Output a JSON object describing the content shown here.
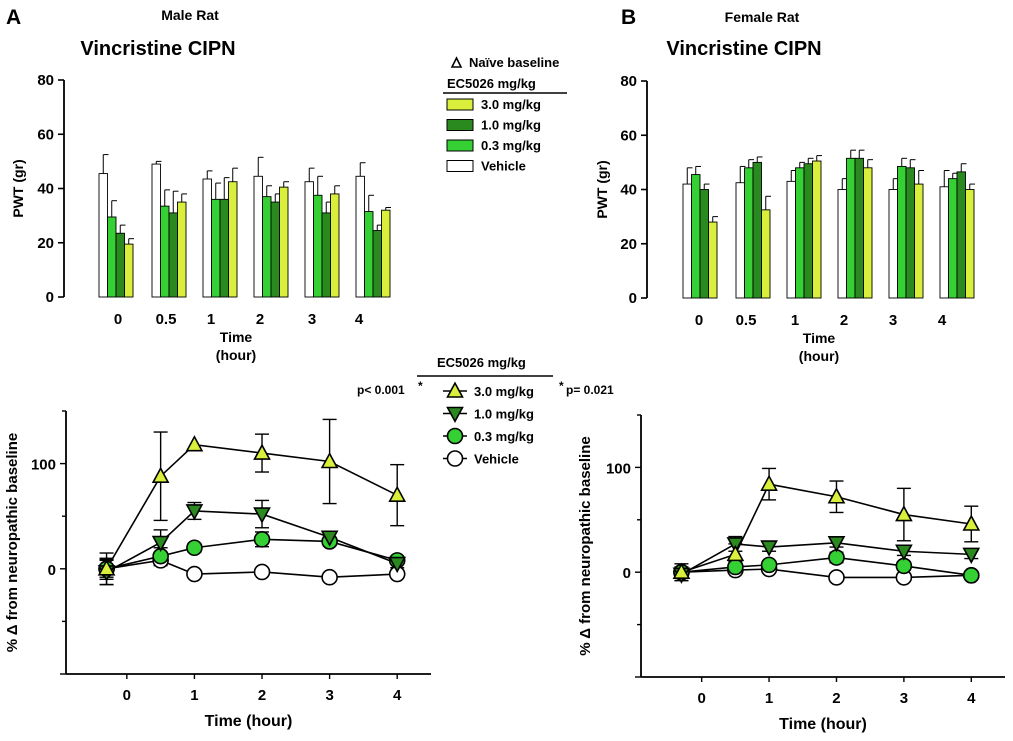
{
  "figure": {
    "panel_a": "A",
    "panel_b": "B",
    "male_title": "Male Rat",
    "female_title": "Female Rat",
    "male_subtitle": "Vincristine CIPN",
    "female_subtitle": "Vincristine CIPN"
  },
  "legend_top": {
    "triangle_label": "Naïve baseline",
    "header": "EC5026 mg/kg",
    "items": [
      {
        "label": "3.0 mg/kg",
        "color": "#d9ef3b"
      },
      {
        "label": "1.0 mg/kg",
        "color": "#2b8a1f"
      },
      {
        "label": "0.3 mg/kg",
        "color": "#34d034"
      },
      {
        "label": "Vehicle",
        "color": "#ffffff"
      }
    ]
  },
  "legend_bottom": {
    "header": "EC5026 mg/kg",
    "items": [
      {
        "label": "3.0 mg/kg",
        "marker": "triangle-up",
        "color": "#d9ef3b"
      },
      {
        "label": "1.0 mg/kg",
        "marker": "triangle-down",
        "color": "#2b8a1f"
      },
      {
        "label": "0.3 mg/kg",
        "marker": "circle",
        "color": "#34d034"
      },
      {
        "label": "Vehicle",
        "marker": "circle",
        "color": "#ffffff"
      }
    ],
    "pval_left": "p< 0.001",
    "pval_left_star": "*",
    "pval_right_star": "*",
    "pval_right": "p= 0.021"
  },
  "chart_data": [
    {
      "id": "male_bar",
      "type": "bar",
      "title": "Male Rat",
      "subtitle": "Vincristine CIPN",
      "ylabel": "PWT (gr)",
      "xlabel": "Time",
      "xlabel2": "(hour)",
      "ylim": [
        0,
        80
      ],
      "yticks": [
        0,
        20,
        40,
        60,
        80
      ],
      "categories": [
        "0",
        "0.5",
        "1",
        "2",
        "3",
        "4"
      ],
      "series": [
        {
          "name": "Vehicle",
          "color": "#ffffff",
          "values": [
            45.5,
            49,
            43.5,
            44.5,
            42.5,
            44.5
          ],
          "errors": [
            7,
            1,
            3,
            7,
            5,
            5
          ]
        },
        {
          "name": "0.3 mg/kg",
          "color": "#34d034",
          "values": [
            29.5,
            33.5,
            36,
            37,
            37.5,
            31.5
          ],
          "errors": [
            6,
            6,
            6,
            4,
            7,
            6
          ]
        },
        {
          "name": "1.0 mg/kg",
          "color": "#2b8a1f",
          "values": [
            23.5,
            31,
            36,
            35,
            31,
            24.5
          ],
          "errors": [
            3,
            8,
            8,
            3,
            4,
            2
          ]
        },
        {
          "name": "3.0 mg/kg",
          "color": "#d9ef3b",
          "values": [
            19.5,
            35,
            42.5,
            40.5,
            38,
            32
          ],
          "errors": [
            2,
            3,
            5,
            2,
            3,
            1
          ]
        }
      ]
    },
    {
      "id": "female_bar",
      "type": "bar",
      "title": "Female Rat",
      "subtitle": "Vincristine CIPN",
      "ylabel": "PWT (gr)",
      "xlabel": "Time",
      "xlabel2": "(hour)",
      "ylim": [
        0,
        80
      ],
      "yticks": [
        0,
        20,
        40,
        60,
        80
      ],
      "categories": [
        "0",
        "0.5",
        "1",
        "2",
        "3",
        "4"
      ],
      "series": [
        {
          "name": "Vehicle",
          "color": "#ffffff",
          "values": [
            42,
            42.5,
            43,
            40,
            40,
            41
          ],
          "errors": [
            6,
            6,
            4,
            4,
            4,
            6
          ]
        },
        {
          "name": "0.3 mg/kg",
          "color": "#34d034",
          "values": [
            45.5,
            48,
            48,
            51.5,
            48.5,
            44
          ],
          "errors": [
            3,
            3,
            2,
            3,
            3,
            2
          ]
        },
        {
          "name": "1.0 mg/kg",
          "color": "#2b8a1f",
          "values": [
            40,
            50,
            49.5,
            51.5,
            48,
            46.5
          ],
          "errors": [
            2,
            2,
            2,
            3,
            3,
            3
          ]
        },
        {
          "name": "3.0 mg/kg",
          "color": "#d9ef3b",
          "values": [
            28,
            32.5,
            50.5,
            48,
            42,
            40
          ],
          "errors": [
            2,
            5,
            2,
            3,
            5,
            2
          ]
        }
      ]
    },
    {
      "id": "male_line",
      "type": "line",
      "ylabel": "% Δ from neuropathic baseline",
      "xlabel": "Time (hour)",
      "ylim": [
        -100,
        150
      ],
      "yticks": [
        0,
        100
      ],
      "xlim": [
        -0.9,
        4.5
      ],
      "xticks": [
        0,
        1,
        2,
        3,
        4
      ],
      "series": [
        {
          "name": "3.0 mg/kg",
          "marker": "triangle-up",
          "color": "#d9ef3b",
          "x": [
            -0.3,
            0.5,
            1,
            2,
            3,
            4
          ],
          "y": [
            0,
            88,
            118,
            110,
            102,
            70
          ],
          "err": [
            15,
            42,
            3,
            18,
            40,
            29
          ]
        },
        {
          "name": "1.0 mg/kg",
          "marker": "triangle-down",
          "color": "#2b8a1f",
          "x": [
            -0.3,
            0.5,
            1,
            2,
            3,
            4
          ],
          "y": [
            -3,
            25,
            55,
            52,
            30,
            5
          ],
          "err": [
            12,
            12,
            8,
            13,
            4,
            4
          ]
        },
        {
          "name": "0.3 mg/kg",
          "marker": "circle",
          "color": "#34d034",
          "x": [
            -0.3,
            0.5,
            1,
            2,
            3,
            4
          ],
          "y": [
            0,
            12,
            20,
            28,
            26,
            8
          ],
          "err": [
            10,
            8,
            4,
            7,
            4,
            3
          ]
        },
        {
          "name": "Vehicle",
          "marker": "circle",
          "color": "#ffffff",
          "x": [
            -0.3,
            0.5,
            1,
            2,
            3,
            4
          ],
          "y": [
            0,
            8,
            -5,
            -3,
            -8,
            -5
          ],
          "err": [
            8,
            5,
            3,
            3,
            3,
            3
          ]
        }
      ]
    },
    {
      "id": "female_line",
      "type": "line",
      "ylabel": "% Δ from neuropathic baseline",
      "xlabel": "Time (hour)",
      "ylim": [
        -100,
        150
      ],
      "yticks": [
        0,
        100
      ],
      "xlim": [
        -0.9,
        4.5
      ],
      "xticks": [
        0,
        1,
        2,
        3,
        4
      ],
      "series": [
        {
          "name": "3.0 mg/kg",
          "marker": "triangle-up",
          "color": "#d9ef3b",
          "x": [
            -0.3,
            0.5,
            1,
            2,
            3,
            4
          ],
          "y": [
            0,
            17,
            84,
            72,
            55,
            46
          ],
          "err": [
            8,
            10,
            15,
            15,
            25,
            17
          ]
        },
        {
          "name": "1.0 mg/kg",
          "marker": "triangle-down",
          "color": "#2b8a1f",
          "x": [
            -0.3,
            0.5,
            1,
            2,
            3,
            4
          ],
          "y": [
            -2,
            27,
            24,
            28,
            20,
            17
          ],
          "err": [
            6,
            7,
            4,
            4,
            4,
            4
          ]
        },
        {
          "name": "0.3 mg/kg",
          "marker": "circle",
          "color": "#34d034",
          "x": [
            -0.3,
            0.5,
            1,
            2,
            3,
            4
          ],
          "y": [
            0,
            5,
            7,
            14,
            6,
            -3
          ],
          "err": [
            5,
            5,
            4,
            5,
            4,
            3
          ]
        },
        {
          "name": "Vehicle",
          "marker": "circle",
          "color": "#ffffff",
          "x": [
            -0.3,
            0.5,
            1,
            2,
            3,
            4
          ],
          "y": [
            0,
            2,
            3,
            -5,
            -5,
            -3
          ],
          "err": [
            4,
            3,
            3,
            3,
            3,
            3
          ]
        }
      ]
    }
  ]
}
